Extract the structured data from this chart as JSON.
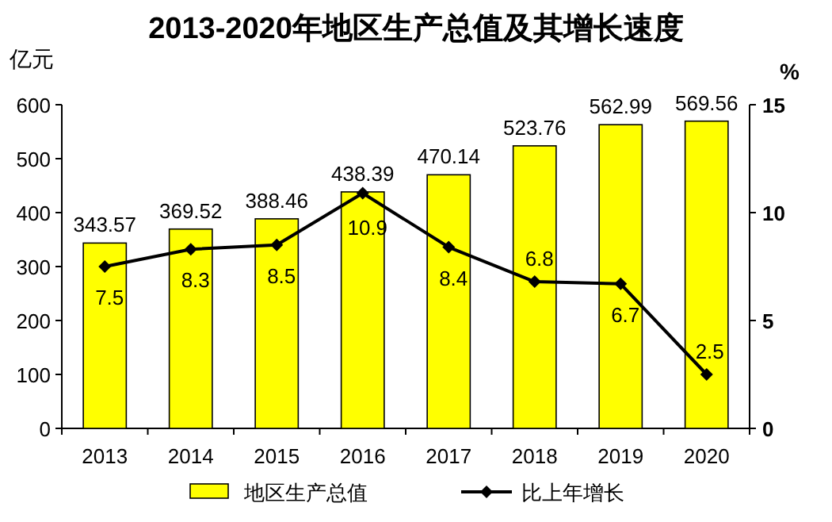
{
  "chart_data": {
    "type": "bar",
    "title": "2013-2020年地区生产总值及其增长速度",
    "ylabel": "亿元",
    "y2label": "%",
    "categories": [
      "2013",
      "2014",
      "2015",
      "2016",
      "2017",
      "2018",
      "2019",
      "2020"
    ],
    "series": [
      {
        "name": "地区生产总值",
        "color": "#ffff00",
        "values": [
          343.57,
          369.52,
          388.46,
          438.39,
          470.14,
          523.76,
          562.99,
          569.56
        ]
      },
      {
        "name": "比上年增长",
        "type": "line",
        "axis": "y2",
        "color": "#000000",
        "marker": "diamond",
        "values": [
          7.5,
          8.3,
          8.5,
          10.9,
          8.4,
          6.8,
          6.7,
          2.5
        ]
      }
    ],
    "data_labels": true,
    "ylim": [
      0,
      600
    ],
    "yticks": [
      0,
      100,
      200,
      300,
      400,
      500,
      600
    ],
    "y2lim": [
      0,
      15
    ],
    "y2ticks": [
      0,
      5,
      10,
      15
    ],
    "legend": "bottom",
    "grid": false
  }
}
